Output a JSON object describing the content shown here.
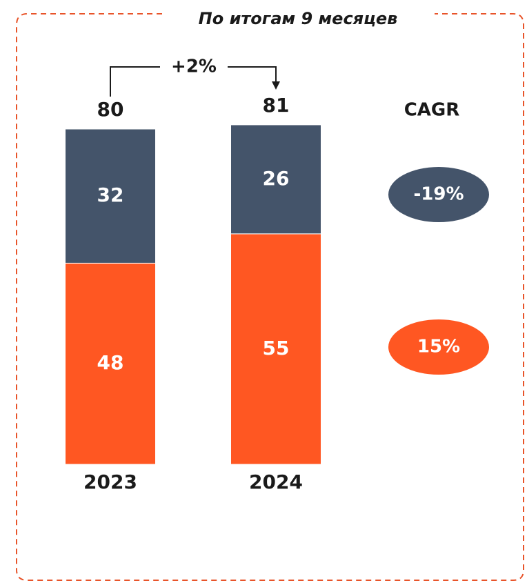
{
  "chart_data": {
    "type": "stacked_bar",
    "title": "По итогам 9 месяцев",
    "categories": [
      "2023",
      "2024"
    ],
    "series": [
      {
        "color": "#ff5722",
        "values": [
          48,
          55
        ]
      },
      {
        "color": "#44546a",
        "values": [
          32,
          26
        ]
      }
    ],
    "totals": [
      80,
      81
    ],
    "growth": {
      "value": 2,
      "label": "+2%"
    },
    "cagr": {
      "label": "CAGR",
      "values": [
        -19,
        15
      ],
      "value_labels": [
        "-19%",
        "15%"
      ]
    }
  }
}
